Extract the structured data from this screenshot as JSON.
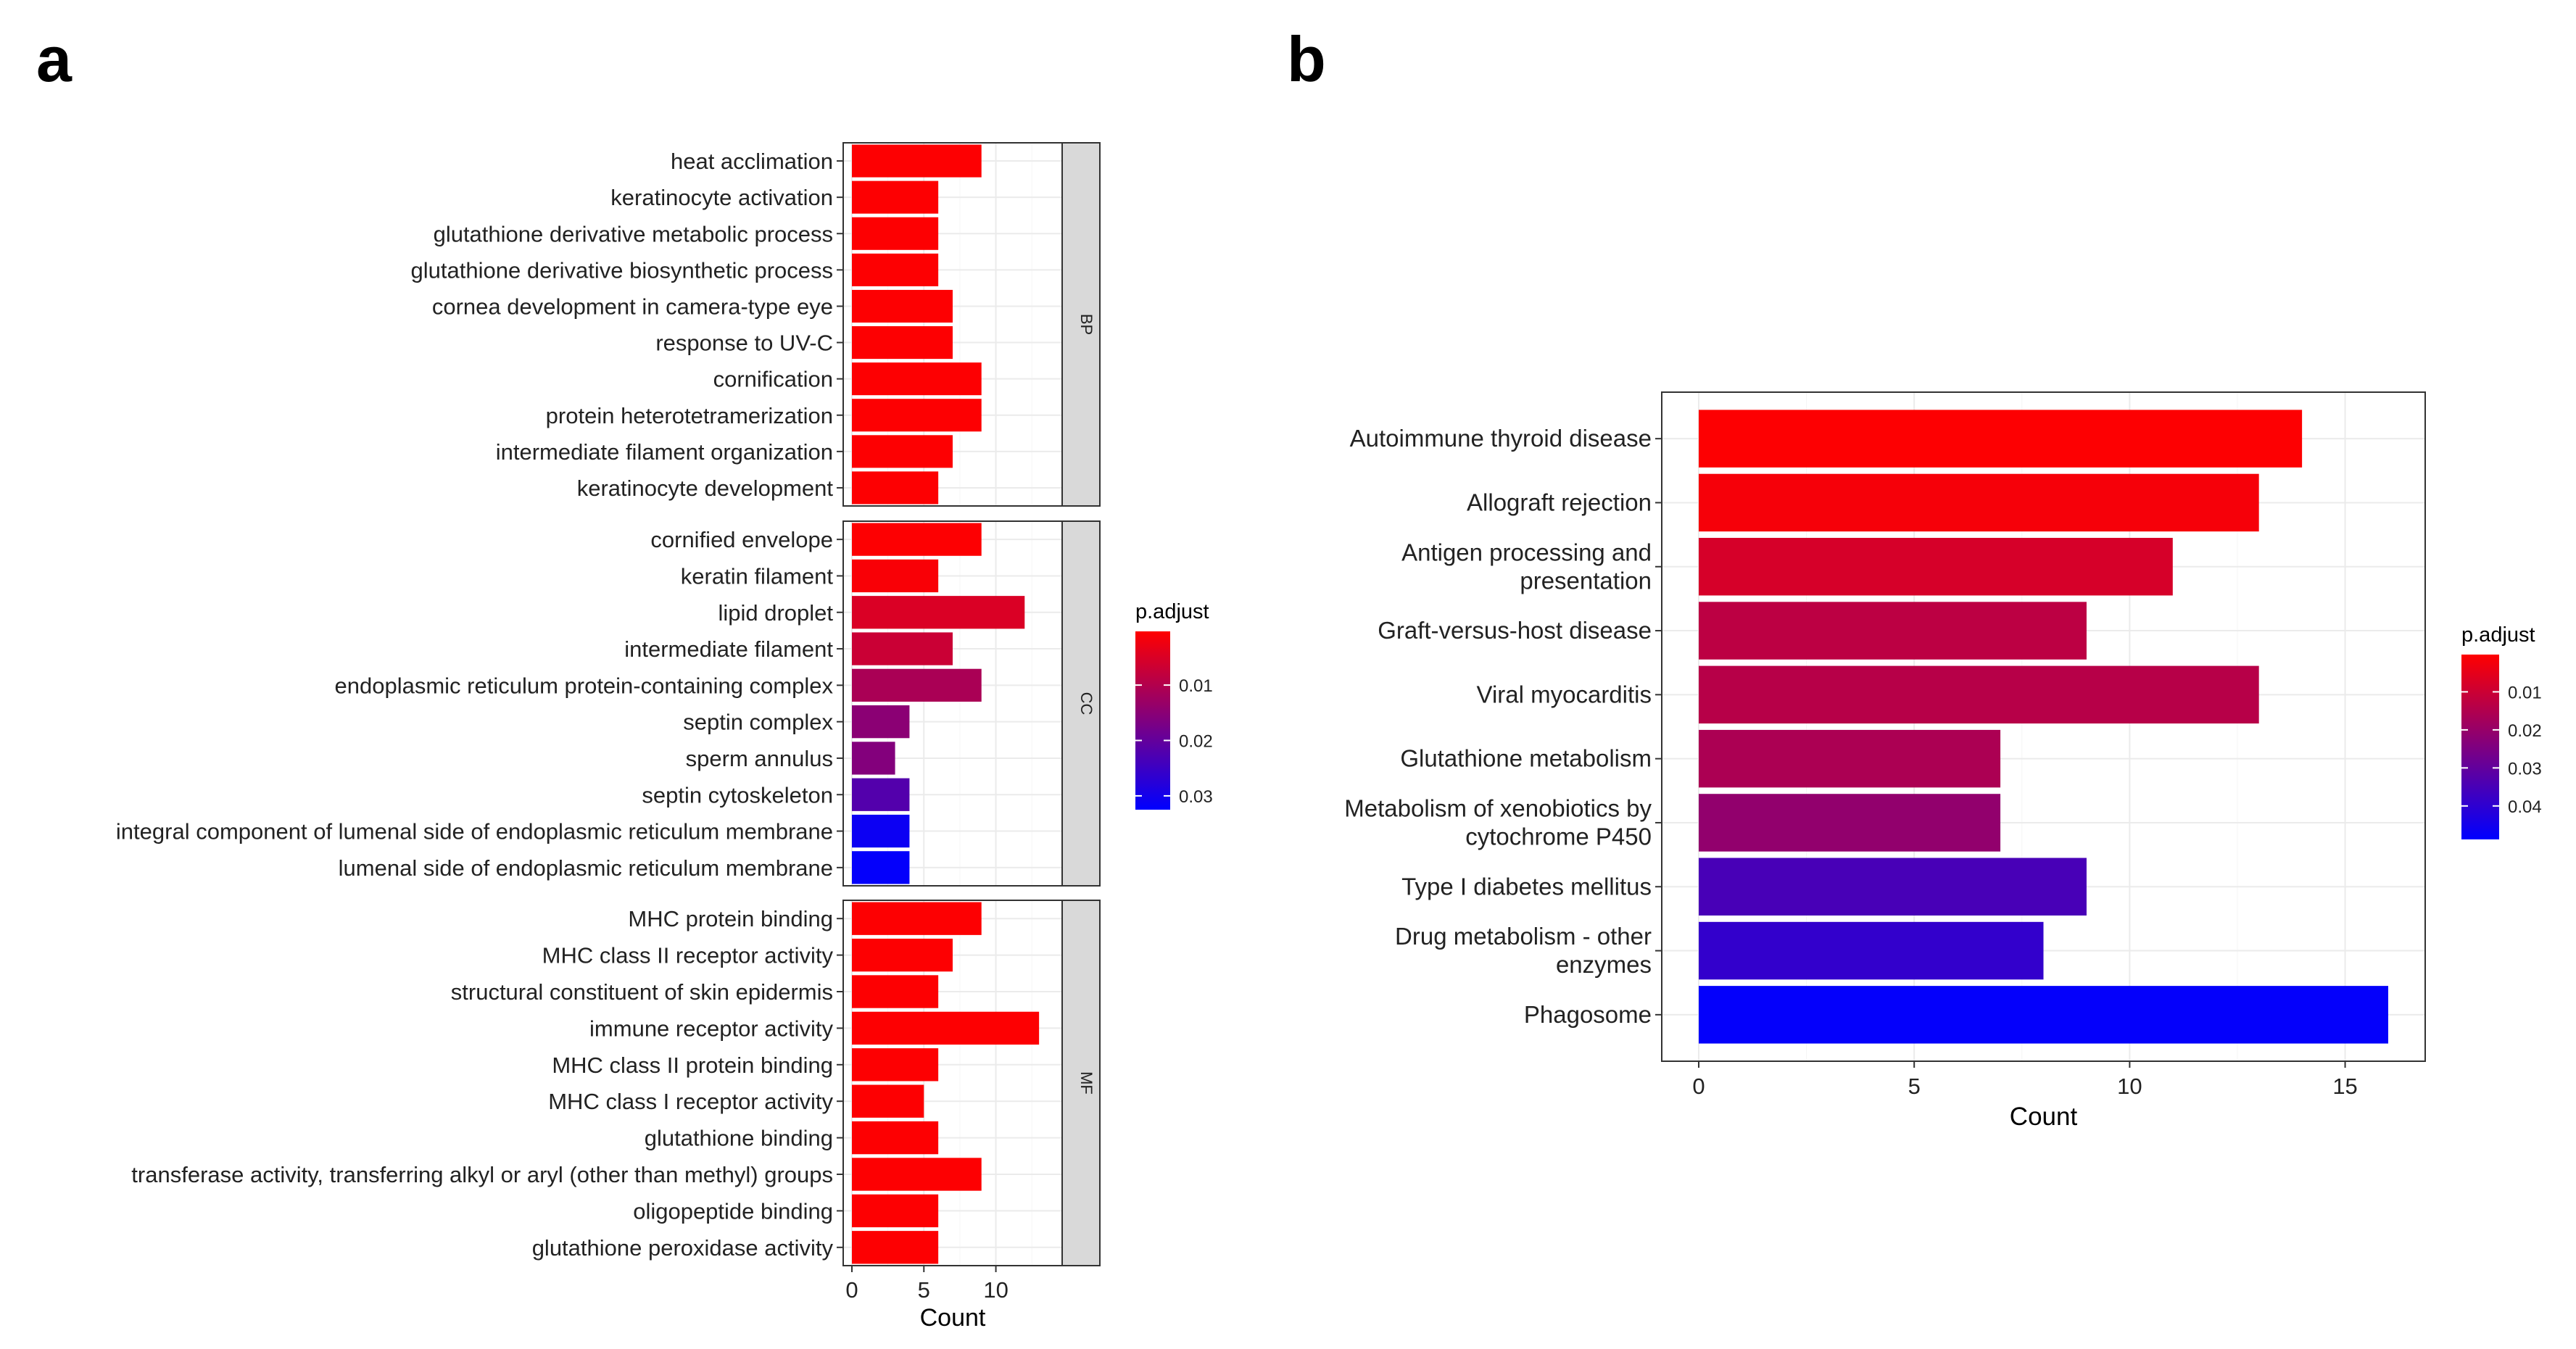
{
  "panel_labels": {
    "a": "a",
    "b": "b"
  },
  "chart_data": [
    {
      "type": "bar",
      "orientation": "horizontal",
      "panel": "a",
      "xlabel": "Count",
      "xlim": [
        0,
        14
      ],
      "xticks": [
        0,
        5,
        10
      ],
      "grid": true,
      "facets": [
        {
          "name": "BP",
          "categories": [
            "heat acclimation",
            "keratinocyte activation",
            "glutathione derivative metabolic process",
            "glutathione derivative biosynthetic process",
            "cornea development in camera-type eye",
            "response to UV-C",
            "cornification",
            "protein heterotetramerization",
            "intermediate filament organization",
            "keratinocyte development"
          ],
          "values": [
            9,
            6,
            6,
            6,
            7,
            7,
            9,
            9,
            7,
            6
          ],
          "p_adjust": [
            0.0005,
            0.0005,
            0.0005,
            0.0005,
            0.0005,
            0.0005,
            0.0005,
            0.0005,
            0.0005,
            0.0005
          ]
        },
        {
          "name": "CC",
          "categories": [
            "cornified envelope",
            "keratin filament",
            "lipid droplet",
            "intermediate filament",
            "endoplasmic reticulum protein-containing complex",
            "septin complex",
            "sperm annulus",
            "septin cytoskeleton",
            "integral component of lumenal side of endoplasmic reticulum membrane",
            "lumenal side of endoplasmic reticulum membrane"
          ],
          "values": [
            9,
            6,
            12,
            7,
            9,
            4,
            3,
            4,
            4,
            4
          ],
          "p_adjust": [
            0.0005,
            0.001,
            0.005,
            0.007,
            0.011,
            0.015,
            0.016,
            0.022,
            0.031,
            0.032
          ]
        },
        {
          "name": "MF",
          "categories": [
            "MHC protein binding",
            "MHC class II receptor activity",
            "structural constituent of skin epidermis",
            "immune receptor activity",
            "MHC class II protein binding",
            "MHC class I receptor activity",
            "glutathione binding",
            "transferase activity, transferring alkyl or aryl (other than methyl) groups",
            "oligopeptide binding",
            "glutathione peroxidase activity"
          ],
          "values": [
            9,
            7,
            6,
            13,
            6,
            5,
            6,
            9,
            6,
            6
          ],
          "p_adjust": [
            0.0005,
            0.0005,
            0.0005,
            0.0005,
            0.0005,
            0.0005,
            0.0005,
            0.0005,
            0.0005,
            0.0005
          ]
        }
      ],
      "legend": {
        "title": "p.adjust",
        "placement": "right",
        "ticks": [
          "0.01",
          "0.02",
          "0.03"
        ],
        "tick_values": [
          0.01,
          0.02,
          0.03
        ],
        "range": [
          0.0003,
          0.0325
        ],
        "colors": {
          "low": "#FF0000",
          "high": "#0000FF"
        }
      }
    },
    {
      "type": "bar",
      "orientation": "horizontal",
      "panel": "b",
      "xlabel": "Count",
      "xlim": [
        0,
        16
      ],
      "xticks": [
        0,
        5,
        10,
        15
      ],
      "grid": true,
      "categories": [
        [
          "Autoimmune thyroid disease"
        ],
        [
          "Allograft rejection"
        ],
        [
          "Antigen processing and",
          "presentation"
        ],
        [
          "Graft-versus-host disease"
        ],
        [
          "Viral myocarditis"
        ],
        [
          "Glutathione metabolism"
        ],
        [
          "Metabolism of xenobiotics by",
          "cytochrome P450"
        ],
        [
          "Type I diabetes mellitus"
        ],
        [
          "Drug metabolism - other",
          "enzymes"
        ],
        [
          "Phagosome"
        ]
      ],
      "values": [
        14,
        13,
        11,
        9,
        13,
        7,
        7,
        9,
        8,
        16
      ],
      "p_adjust": [
        0.0005,
        0.002,
        0.008,
        0.013,
        0.014,
        0.016,
        0.021,
        0.035,
        0.039,
        0.048
      ],
      "legend": {
        "title": "p.adjust",
        "placement": "right",
        "ticks": [
          "0.01",
          "0.02",
          "0.03",
          "0.04"
        ],
        "tick_values": [
          0.01,
          0.02,
          0.03,
          0.04
        ],
        "range": [
          0.0002,
          0.0488
        ],
        "colors": {
          "low": "#FF0000",
          "high": "#0000FF"
        }
      }
    }
  ]
}
